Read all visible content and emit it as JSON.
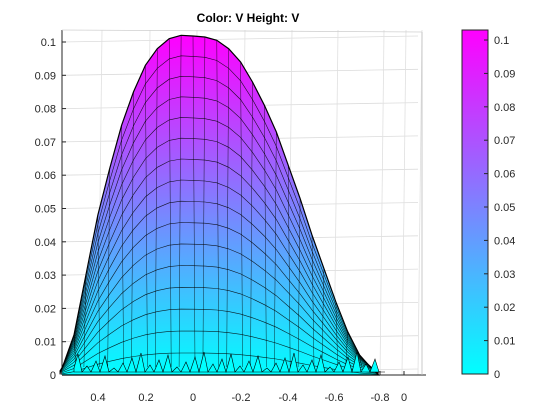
{
  "chart_data": {
    "type": "surface",
    "title": "Color: V  Height: V",
    "xlabel": "",
    "ylabel": "",
    "zlim": [
      0,
      0.1
    ],
    "z_ticks": [
      "0",
      "0.01",
      "0.02",
      "0.03",
      "0.04",
      "0.05",
      "0.06",
      "0.07",
      "0.08",
      "0.09",
      "0.1"
    ],
    "x_ticks": [
      "0.4",
      "0.2",
      "0",
      "-0.2",
      "-0.4",
      "-0.6",
      "-0.8",
      "0"
    ],
    "x_reversed": true,
    "peak": {
      "x": -0.05,
      "z": 0.102
    },
    "surface_profile": [
      [
        0.56,
        0.0
      ],
      [
        0.5,
        0.012
      ],
      [
        0.45,
        0.03
      ],
      [
        0.4,
        0.048
      ],
      [
        0.35,
        0.062
      ],
      [
        0.3,
        0.075
      ],
      [
        0.25,
        0.085
      ],
      [
        0.2,
        0.093
      ],
      [
        0.15,
        0.098
      ],
      [
        0.1,
        0.101
      ],
      [
        0.05,
        0.102
      ],
      [
        0.0,
        0.1018
      ],
      [
        -0.05,
        0.1015
      ],
      [
        -0.1,
        0.1005
      ],
      [
        -0.15,
        0.098
      ],
      [
        -0.2,
        0.094
      ],
      [
        -0.25,
        0.088
      ],
      [
        -0.3,
        0.081
      ],
      [
        -0.35,
        0.073
      ],
      [
        -0.4,
        0.063
      ],
      [
        -0.45,
        0.053
      ],
      [
        -0.5,
        0.042
      ],
      [
        -0.55,
        0.032
      ],
      [
        -0.6,
        0.022
      ],
      [
        -0.65,
        0.013
      ],
      [
        -0.7,
        0.006
      ],
      [
        -0.75,
        0.002
      ],
      [
        -0.78,
        0.0
      ]
    ],
    "colormap": {
      "name": "cool",
      "low": "#00ffff",
      "high": "#ff00ff"
    },
    "colorbar": {
      "limits": [
        0,
        0.103
      ],
      "ticks": [
        "0",
        "0.01",
        "0.02",
        "0.03",
        "0.04",
        "0.05",
        "0.06",
        "0.07",
        "0.08",
        "0.09",
        "0.1"
      ]
    },
    "grid": true,
    "mesh": true,
    "legend": "colorbar-right"
  }
}
